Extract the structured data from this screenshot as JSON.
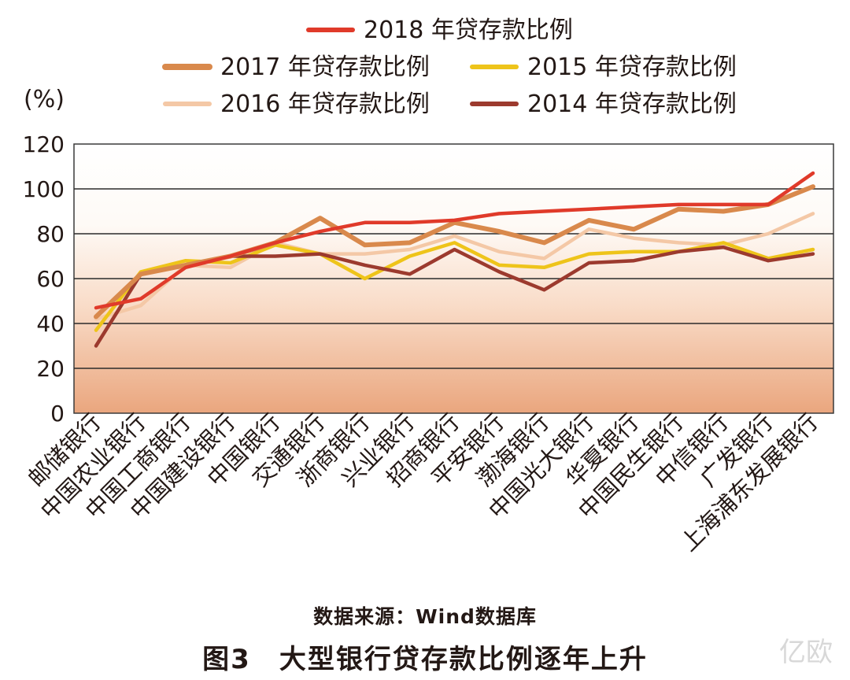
{
  "chart_data": {
    "type": "line",
    "ylabel": "(%)",
    "ylim": [
      0,
      120
    ],
    "yticks": [
      0,
      20,
      40,
      60,
      80,
      100,
      120
    ],
    "grid": true,
    "legend_position": "top",
    "categories": [
      "邮储银行",
      "中国农业银行",
      "中国工商银行",
      "中国建设银行",
      "中国银行",
      "交通银行",
      "浙商银行",
      "兴业银行",
      "招商银行",
      "平安银行",
      "渤海银行",
      "中国光大银行",
      "华夏银行",
      "中国民生银行",
      "中信银行",
      "广发银行",
      "上海浦东发展银行"
    ],
    "series": [
      {
        "name": "2018 年贷存款比例",
        "color": "#e03a2a",
        "values": [
          47,
          51,
          65,
          70,
          76,
          81,
          85,
          85,
          86,
          89,
          90,
          91,
          92,
          93,
          93,
          93,
          107
        ]
      },
      {
        "name": "2017 年贷存款比例",
        "color": "#d9894c",
        "values": [
          43,
          62,
          66,
          70,
          76,
          87,
          75,
          76,
          85,
          81,
          76,
          86,
          82,
          91,
          90,
          93,
          101
        ]
      },
      {
        "name": "2015 年贷存款比例",
        "color": "#eec41a",
        "values": [
          37,
          63,
          68,
          67,
          75,
          71,
          60,
          70,
          76,
          66,
          65,
          71,
          72,
          72,
          76,
          69,
          73
        ]
      },
      {
        "name": "2016 年贷存款比例",
        "color": "#f4c8a6",
        "values": [
          42,
          48,
          66,
          65,
          76,
          71,
          71,
          73,
          79,
          72,
          69,
          82,
          78,
          76,
          75,
          80,
          89
        ]
      },
      {
        "name": "2014 年贷存款比例",
        "color": "#9c3a2e",
        "values": [
          30,
          62,
          66,
          70,
          70,
          71,
          66,
          62,
          73,
          63,
          55,
          67,
          68,
          72,
          74,
          68,
          71
        ]
      }
    ]
  },
  "source_note": "数据来源：Wind数据库",
  "figure_number": "图3",
  "figure_title": "大型银行贷存款比例逐年上升",
  "watermark": "亿欧"
}
